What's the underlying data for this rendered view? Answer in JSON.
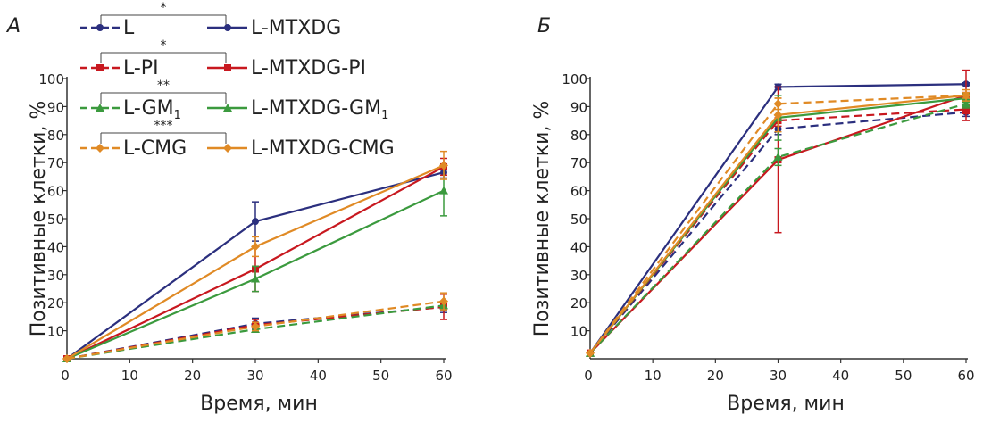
{
  "colors": {
    "navy": "#2b2f7e",
    "red": "#c8181f",
    "green": "#3b9a3e",
    "orange": "#e08a25"
  },
  "chart_data": [
    {
      "panel_label": "А",
      "type": "line",
      "xlabel": "Время, мин",
      "ylabel": "Позитивные клетки, %",
      "xlim": [
        0,
        60
      ],
      "ylim": [
        0,
        100
      ],
      "xticks": [
        "0",
        "10",
        "20",
        "30",
        "40",
        "50",
        "60"
      ],
      "yticks": [
        "10",
        "20",
        "30",
        "40",
        "50",
        "60",
        "70",
        "80",
        "90",
        "100"
      ],
      "x": [
        0,
        30,
        60
      ],
      "legend": {
        "placement": "top-left",
        "rows": [
          {
            "star": "*",
            "left": "L",
            "right": "L-MTXDG"
          },
          {
            "star": "*",
            "left": "L-PI",
            "right": "L-MTXDG-PI"
          },
          {
            "star": "**",
            "left": "L-GM",
            "left_sub": "1",
            "right": "L-MTXDG-GM",
            "right_sub": "1"
          },
          {
            "star": "***",
            "left": "L-CMG",
            "right": "L-MTXDG-CMG"
          }
        ]
      },
      "series": [
        {
          "name": "L",
          "color": "navy",
          "dash": true,
          "marker": "circle",
          "values": [
            0,
            12.5,
            18.5
          ],
          "err": [
            0,
            2,
            2
          ]
        },
        {
          "name": "L-MTXDG",
          "color": "navy",
          "dash": false,
          "marker": "circle",
          "values": [
            0,
            49,
            66.5
          ],
          "err": [
            0,
            7,
            2
          ]
        },
        {
          "name": "L-PI",
          "color": "red",
          "dash": true,
          "marker": "square",
          "values": [
            0,
            12,
            18.5
          ],
          "err": [
            0,
            2,
            4.5
          ]
        },
        {
          "name": "L-MTXDG-PI",
          "color": "red",
          "dash": false,
          "marker": "square",
          "values": [
            0,
            32,
            68.5
          ],
          "err": [
            0,
            8,
            3
          ]
        },
        {
          "name": "L-GM1",
          "color": "green",
          "dash": true,
          "marker": "triangle",
          "values": [
            0,
            10.5,
            19
          ],
          "err": [
            0,
            1,
            1.5
          ]
        },
        {
          "name": "L-MTXDG-GM1",
          "color": "green",
          "dash": false,
          "marker": "triangle",
          "values": [
            0,
            28.5,
            60
          ],
          "err": [
            0,
            4.5,
            9
          ]
        },
        {
          "name": "L-CMG",
          "color": "orange",
          "dash": true,
          "marker": "diamond",
          "values": [
            0,
            11.5,
            20.5
          ],
          "err": [
            0,
            1.5,
            3
          ]
        },
        {
          "name": "L-MTXDG-CMG",
          "color": "orange",
          "dash": false,
          "marker": "diamond",
          "values": [
            0,
            40,
            69
          ],
          "err": [
            0,
            3.5,
            5
          ]
        }
      ]
    },
    {
      "panel_label": "Б",
      "type": "line",
      "xlabel": "Время, мин",
      "ylabel": "Позитивные клетки, %",
      "xlim": [
        0,
        60
      ],
      "ylim": [
        0,
        100
      ],
      "xticks": [
        "0",
        "10",
        "20",
        "30",
        "40",
        "50",
        "60"
      ],
      "yticks": [
        "10",
        "20",
        "30",
        "40",
        "50",
        "60",
        "70",
        "80",
        "90",
        "100"
      ],
      "x": [
        0,
        30,
        60
      ],
      "series": [
        {
          "name": "L",
          "color": "navy",
          "dash": true,
          "marker": "circle",
          "values": [
            2,
            82,
            88
          ],
          "err": [
            0,
            2,
            1.5
          ]
        },
        {
          "name": "L-MTXDG",
          "color": "navy",
          "dash": false,
          "marker": "circle",
          "values": [
            2,
            97,
            98
          ],
          "err": [
            0,
            1,
            0.5
          ]
        },
        {
          "name": "L-PI",
          "color": "red",
          "dash": true,
          "marker": "square",
          "values": [
            2,
            85,
            89
          ],
          "err": [
            0,
            2,
            1.5
          ]
        },
        {
          "name": "L-MTXDG-PI",
          "color": "red",
          "dash": false,
          "marker": "square",
          "values": [
            2,
            71,
            94
          ],
          "err": [
            0,
            26,
            9
          ]
        },
        {
          "name": "L-GM1",
          "color": "green",
          "dash": true,
          "marker": "triangle",
          "values": [
            2,
            72,
            91
          ],
          "err": [
            0,
            3,
            1.5
          ]
        },
        {
          "name": "L-MTXDG-GM1",
          "color": "green",
          "dash": false,
          "marker": "triangle",
          "values": [
            2,
            86,
            93
          ],
          "err": [
            0,
            8,
            1.5
          ]
        },
        {
          "name": "L-CMG",
          "color": "orange",
          "dash": true,
          "marker": "diamond",
          "values": [
            2,
            91,
            94
          ],
          "err": [
            0,
            2,
            1
          ]
        },
        {
          "name": "L-MTXDG-CMG",
          "color": "orange",
          "dash": false,
          "marker": "diamond",
          "values": [
            2,
            87,
            94
          ],
          "err": [
            0,
            6,
            2
          ]
        }
      ]
    }
  ]
}
